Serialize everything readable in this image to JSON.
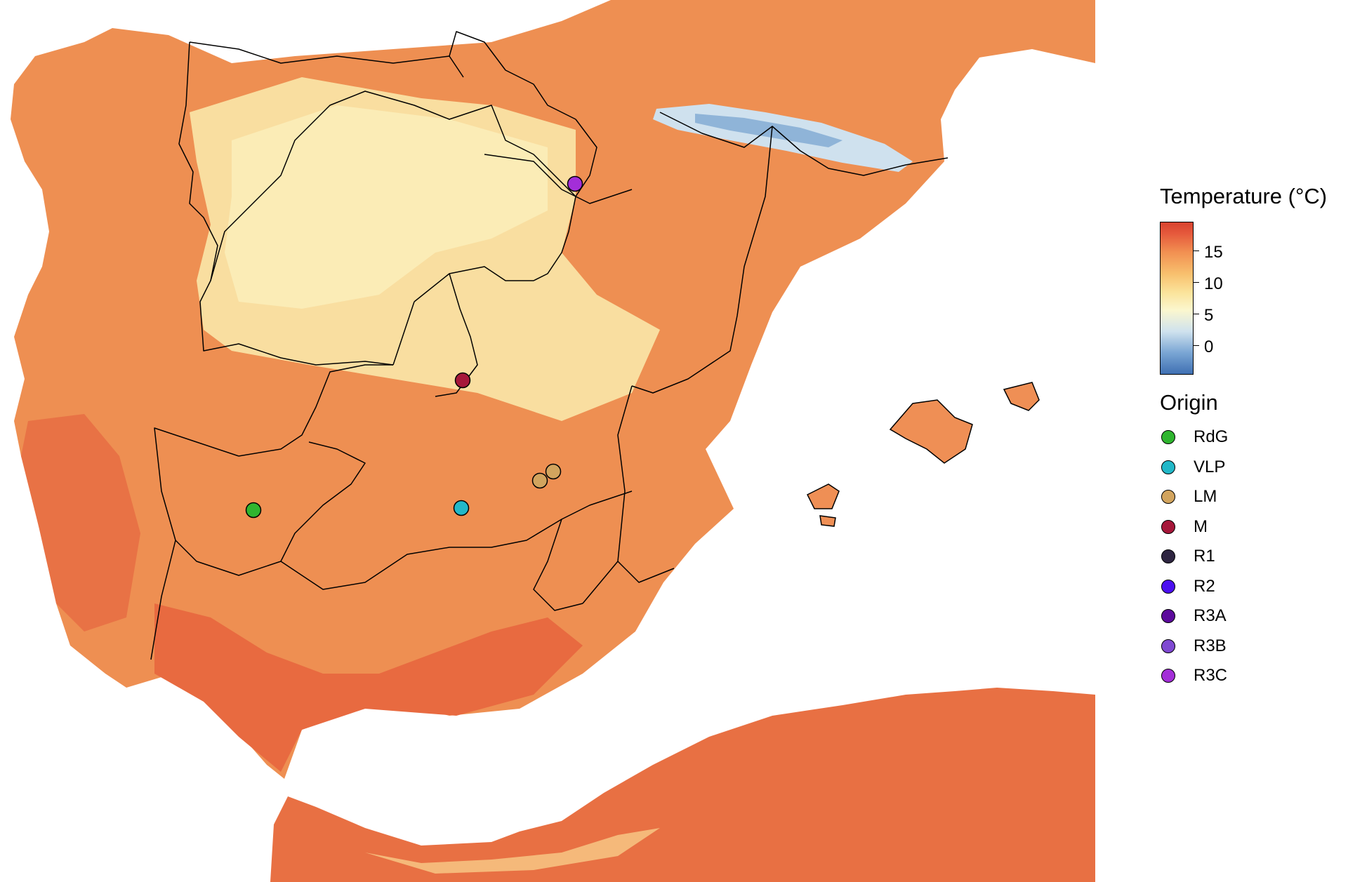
{
  "legend": {
    "temperature_title": "Temperature (°C)",
    "temperature_ticks": [
      "15",
      "10",
      "5",
      "0"
    ],
    "origin_title": "Origin",
    "origins": [
      {
        "label": "RdG",
        "color": "#2fb52f"
      },
      {
        "label": "VLP",
        "color": "#22b8c8"
      },
      {
        "label": "LM",
        "color": "#d2a45e"
      },
      {
        "label": "M",
        "color": "#a6173a"
      },
      {
        "label": "R1",
        "color": "#2e2541"
      },
      {
        "label": "R2",
        "color": "#4b0ff0"
      },
      {
        "label": "R3A",
        "color": "#5c0a9c"
      },
      {
        "label": "R3B",
        "color": "#7f49d2"
      },
      {
        "label": "R3C",
        "color": "#a32ed8"
      }
    ]
  },
  "map_points": [
    {
      "origin": "RdG"
    },
    {
      "origin": "VLP"
    },
    {
      "origin": "LM"
    },
    {
      "origin": "LM"
    },
    {
      "origin": "M"
    },
    {
      "origin": "R3C"
    }
  ]
}
